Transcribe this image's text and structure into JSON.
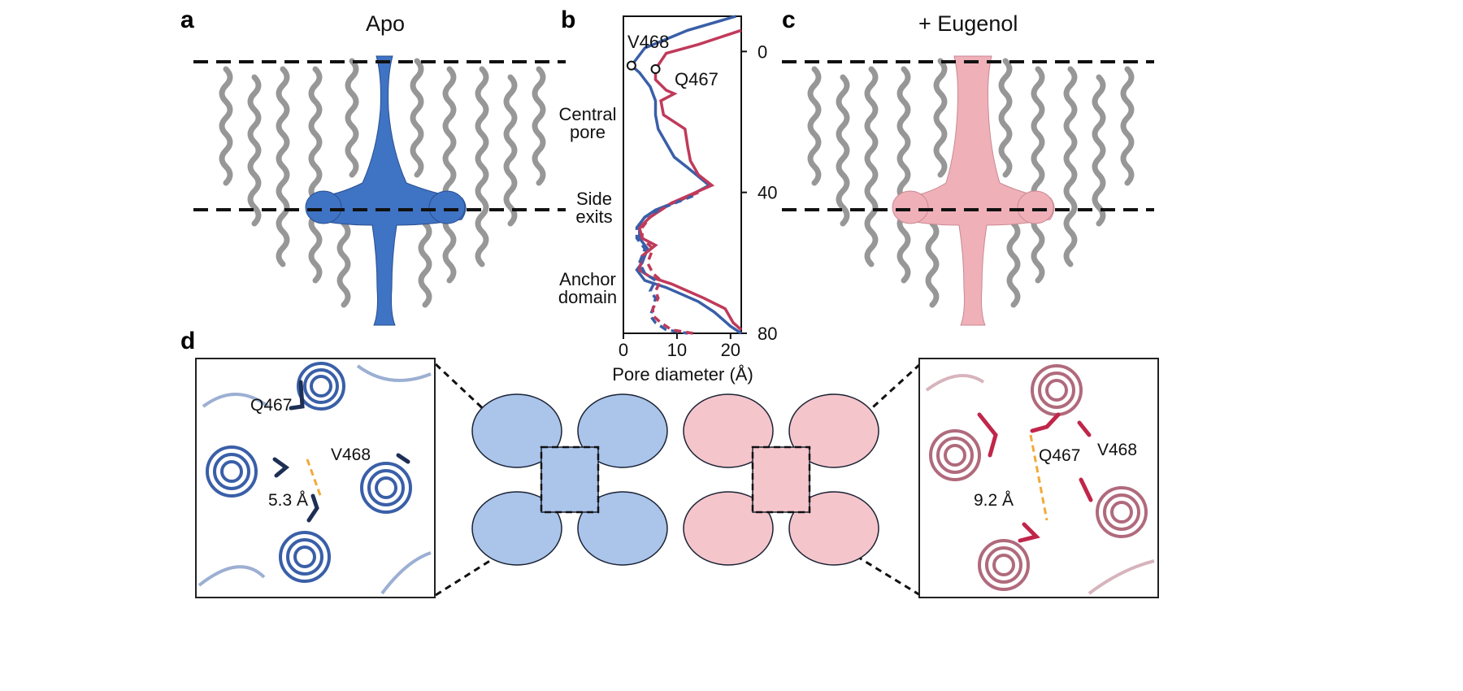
{
  "panels": {
    "a": {
      "letter": "a",
      "title": "Apo"
    },
    "b": {
      "letter": "b",
      "residue_labels": {
        "v468": "V468",
        "q467": "Q467"
      },
      "region_labels": {
        "central": [
          "Central",
          "pore"
        ],
        "side": [
          "Side",
          "exits"
        ],
        "anchor": [
          "Anchor",
          "domain"
        ]
      },
      "xlabel": "Pore diameter (Å)"
    },
    "c": {
      "letter": "c",
      "title": "+ Eugenol"
    },
    "d": {
      "letter": "d",
      "left": {
        "q467": "Q467",
        "v468": "V468",
        "distance": "5.3 Å"
      },
      "right": {
        "q467": "Q467",
        "v468": "V468",
        "distance": "9.2 Å"
      }
    }
  },
  "colors": {
    "apo": "#3a5fa8",
    "eugenol": "#c03a5a",
    "apo_surface": "#3f73c4",
    "eugenol_surface": "#efb0b8",
    "protein": "#8c8c8c",
    "hbond": "#f2a93b"
  },
  "chart_data": {
    "type": "line",
    "xlabel": "Pore diameter (Å)",
    "ylabel": "",
    "xlim": [
      0,
      22
    ],
    "ylim": [
      80,
      -10
    ],
    "xticks": [
      0,
      10,
      20
    ],
    "yticks": [
      0,
      40,
      80
    ],
    "series": [
      {
        "color": "#3a5fa8",
        "style": "solid",
        "points": [
          [
            21,
            -10
          ],
          [
            12,
            -6
          ],
          [
            4,
            -1
          ],
          [
            1.5,
            4
          ],
          [
            3,
            6
          ],
          [
            5,
            10
          ],
          [
            6,
            14
          ],
          [
            6,
            18
          ],
          [
            6.5,
            22
          ],
          [
            8,
            26
          ],
          [
            9.5,
            30
          ],
          [
            12,
            33
          ],
          [
            16,
            38
          ],
          [
            11,
            42
          ],
          [
            6,
            45
          ],
          [
            4,
            47
          ],
          [
            3,
            49
          ],
          [
            3,
            53
          ],
          [
            4.5,
            56
          ],
          [
            3.5,
            60
          ],
          [
            2.5,
            62
          ],
          [
            4,
            65
          ],
          [
            8,
            67
          ],
          [
            11,
            69
          ],
          [
            14,
            71
          ],
          [
            17,
            74
          ],
          [
            20,
            78
          ],
          [
            22,
            80
          ]
        ]
      },
      {
        "color": "#c03a5a",
        "style": "solid",
        "points": [
          [
            22,
            -6
          ],
          [
            14,
            -2
          ],
          [
            8,
            0.5
          ],
          [
            6,
            5
          ],
          [
            6,
            8
          ],
          [
            8,
            11
          ],
          [
            9.5,
            12
          ],
          [
            7,
            14
          ],
          [
            7.5,
            18
          ],
          [
            11.5,
            22
          ],
          [
            12,
            27
          ],
          [
            12.5,
            31
          ],
          [
            14,
            35
          ],
          [
            16.5,
            38
          ],
          [
            9,
            43
          ],
          [
            5,
            47
          ],
          [
            3,
            50
          ],
          [
            3.5,
            53
          ],
          [
            6,
            55
          ],
          [
            3.5,
            58
          ],
          [
            3,
            62
          ],
          [
            5,
            64
          ],
          [
            9,
            66
          ],
          [
            12,
            68
          ],
          [
            15,
            70
          ],
          [
            19,
            73
          ],
          [
            20.5,
            77
          ],
          [
            22,
            79
          ]
        ]
      },
      {
        "color": "#3a5fa8",
        "style": "dashed",
        "points": [
          [
            13,
            41
          ],
          [
            8,
            44
          ],
          [
            4,
            47
          ],
          [
            2.5,
            50
          ],
          [
            2.5,
            53
          ],
          [
            4,
            56
          ],
          [
            3,
            60
          ],
          [
            4,
            63
          ],
          [
            6,
            65
          ],
          [
            5,
            68
          ],
          [
            6,
            70
          ],
          [
            5.5,
            73
          ],
          [
            5,
            75
          ],
          [
            6,
            77
          ],
          [
            8,
            79
          ],
          [
            12,
            80
          ]
        ]
      },
      {
        "color": "#c03a5a",
        "style": "dashed",
        "points": [
          [
            14,
            40
          ],
          [
            9,
            43
          ],
          [
            5,
            47
          ],
          [
            3.5,
            50
          ],
          [
            3.5,
            53
          ],
          [
            5.5,
            56
          ],
          [
            4.5,
            60
          ],
          [
            5.5,
            63
          ],
          [
            7,
            65
          ],
          [
            6,
            68
          ],
          [
            6.5,
            70
          ],
          [
            5.5,
            73
          ],
          [
            5.5,
            75
          ],
          [
            7,
            77
          ],
          [
            9,
            79
          ],
          [
            13,
            80
          ]
        ]
      }
    ],
    "markers": [
      {
        "x": 1.5,
        "y": 4,
        "label": "V468"
      },
      {
        "x": 6,
        "y": 5,
        "label": "Q467"
      }
    ]
  }
}
